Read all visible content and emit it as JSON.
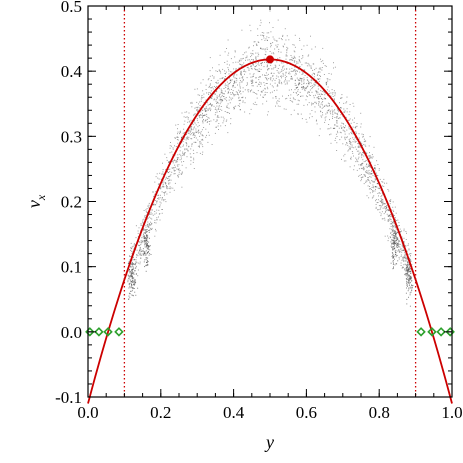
{
  "chart_data": {
    "type": "scatter",
    "title": "",
    "xlabel": "y",
    "ylabel": "v",
    "ylabel_subscript": "x",
    "xlim": [
      0.0,
      1.0
    ],
    "ylim": [
      -0.1,
      0.5
    ],
    "grid": false,
    "x_ticks": [
      0.0,
      0.2,
      0.4,
      0.6,
      0.8,
      1.0
    ],
    "x_tick_labels": [
      "0.0",
      "0.2",
      "0.4",
      "0.6",
      "0.8",
      "1.0"
    ],
    "y_ticks": [
      -0.1,
      0.0,
      0.1,
      0.2,
      0.3,
      0.4,
      0.5
    ],
    "y_tick_labels": [
      "-0.1",
      "0.0",
      "0.1",
      "0.2",
      "0.3",
      "0.4",
      "0.5"
    ],
    "fit_curve": {
      "kind": "parabola",
      "vertex": [
        0.5,
        0.418
      ],
      "y_at_0": -0.11,
      "color": "#cc0000"
    },
    "peak_marker": {
      "x": 0.5,
      "y": 0.418,
      "color": "#cc0000"
    },
    "vertical_lines": [
      {
        "x": 0.1,
        "color": "#cc0000",
        "style": "dotted"
      },
      {
        "x": 0.9,
        "color": "#cc0000",
        "style": "dotted"
      }
    ],
    "diamond_markers": {
      "color": "#2ca02c",
      "points": [
        {
          "x": 0.005,
          "y": 0.0
        },
        {
          "x": 0.03,
          "y": 0.0
        },
        {
          "x": 0.055,
          "y": 0.0
        },
        {
          "x": 0.085,
          "y": 0.0
        },
        {
          "x": 0.915,
          "y": 0.0
        },
        {
          "x": 0.945,
          "y": 0.0
        },
        {
          "x": 0.97,
          "y": 0.0
        },
        {
          "x": 0.995,
          "y": 0.0
        }
      ]
    },
    "scatter_cloud": {
      "color": "#555555",
      "x_range": [
        0.11,
        0.89
      ],
      "center_curve": "fit_curve",
      "spread": 0.022,
      "local_clusters": [
        {
          "x": 0.12,
          "y": 0.09
        },
        {
          "x": 0.16,
          "y": 0.135
        },
        {
          "x": 0.84,
          "y": 0.135
        },
        {
          "x": 0.88,
          "y": 0.09
        }
      ]
    }
  }
}
